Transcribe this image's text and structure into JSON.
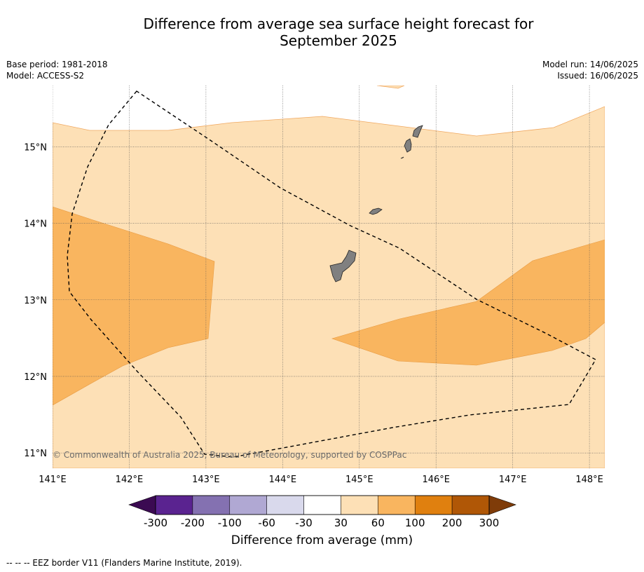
{
  "title": {
    "line1": "Difference from average sea surface height forecast for",
    "line2": "September 2025"
  },
  "meta_left": {
    "base_period": "Base period: 1981-2018",
    "model": "Model: ACCESS-S2"
  },
  "meta_right": {
    "model_run": "Model run: 14/06/2025",
    "issued": "Issued: 16/06/2025"
  },
  "map": {
    "lon_range": [
      141.0,
      148.2
    ],
    "lat_range": [
      10.8,
      15.8
    ],
    "lon_ticks": [
      141,
      142,
      143,
      144,
      145,
      146,
      147,
      148
    ],
    "lon_labels": [
      "141°E",
      "142°E",
      "143°E",
      "144°E",
      "145°E",
      "146°E",
      "147°E",
      "148°E"
    ],
    "lat_ticks": [
      11,
      12,
      13,
      14,
      15
    ],
    "lat_labels": [
      "11°N",
      "12°N",
      "13°N",
      "14°N",
      "15°N"
    ],
    "grid": true,
    "copyright": "© Commonwealth of Australia 2025, Bureau of Meteorology, supported by COSPPac",
    "colors": {
      "band_30_60": "#fde0b6",
      "band_60_100": "#f9b55f",
      "land": "#808080",
      "eez_line": "#000000"
    }
  },
  "colorbar": {
    "ticks": [
      "-300",
      "-200",
      "-100",
      "-60",
      "-30",
      "30",
      "60",
      "100",
      "200",
      "300"
    ],
    "colors": [
      "#3b0a52",
      "#5a2390",
      "#8471b1",
      "#b0a8d3",
      "#d9d9ec",
      "#ffffff",
      "#fde0b6",
      "#f9b55f",
      "#e0800f",
      "#b05706",
      "#7f3c09"
    ],
    "label": "Difference from average (mm)"
  },
  "footnote": "--  --  -- EEZ border V11 (Flanders Marine Institute, 2019)."
}
